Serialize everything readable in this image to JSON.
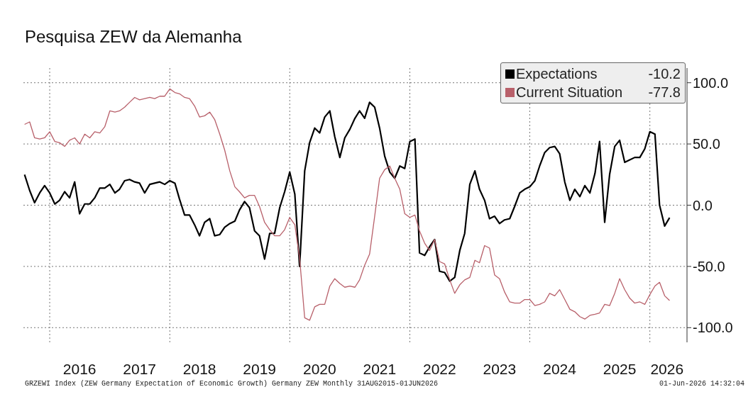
{
  "chart_data": {
    "type": "line",
    "title": "Pesquisa ZEW da Alemanha",
    "annotations": [
      "-10.2",
      "-77.8",
      "GRZEWI Index (ZEW Germany Expectation of Economic Growth) Germany ZEW Monthly 31AUG2015-01JUN2026",
      "01-Jun-2026 14:32:04"
    ],
    "x": [
      "2015-08",
      "2015-09",
      "2015-10",
      "2015-11",
      "2015-12",
      "2016-01",
      "2016-02",
      "2016-03",
      "2016-04",
      "2016-05",
      "2016-06",
      "2016-07",
      "2016-08",
      "2016-09",
      "2016-10",
      "2016-11",
      "2016-12",
      "2017-01",
      "2017-02",
      "2017-03",
      "2017-04",
      "2017-05",
      "2017-06",
      "2017-07",
      "2017-08",
      "2017-09",
      "2017-10",
      "2017-11",
      "2017-12",
      "2018-01",
      "2018-02",
      "2018-03",
      "2018-04",
      "2018-05",
      "2018-06",
      "2018-07",
      "2018-08",
      "2018-09",
      "2018-10",
      "2018-11",
      "2018-12",
      "2019-01",
      "2019-02",
      "2019-03",
      "2019-04",
      "2019-05",
      "2019-06",
      "2019-07",
      "2019-08",
      "2019-09",
      "2019-10",
      "2019-11",
      "2019-12",
      "2020-01",
      "2020-02",
      "2020-03",
      "2020-04",
      "2020-05",
      "2020-06",
      "2020-07",
      "2020-08",
      "2020-09",
      "2020-10",
      "2020-11",
      "2020-12",
      "2021-01",
      "2021-02",
      "2021-03",
      "2021-04",
      "2021-05",
      "2021-06",
      "2021-07",
      "2021-08",
      "2021-09",
      "2021-10",
      "2021-11",
      "2021-12",
      "2022-01",
      "2022-02",
      "2022-03",
      "2022-04",
      "2022-05",
      "2022-06",
      "2022-07",
      "2022-08",
      "2022-09",
      "2022-10",
      "2022-11",
      "2022-12",
      "2023-01",
      "2023-02",
      "2023-03",
      "2023-04",
      "2023-05",
      "2023-06",
      "2023-07",
      "2023-08",
      "2023-09",
      "2023-10",
      "2023-11",
      "2023-12",
      "2024-01",
      "2024-02",
      "2024-03",
      "2024-04",
      "2024-05",
      "2024-06",
      "2024-07",
      "2024-08",
      "2024-09",
      "2024-10",
      "2024-11",
      "2024-12",
      "2025-01",
      "2025-02",
      "2025-03",
      "2025-04",
      "2025-05",
      "2025-06",
      "2025-07",
      "2025-08",
      "2025-09",
      "2025-10",
      "2025-11",
      "2025-12",
      "2026-01",
      "2026-02",
      "2026-03",
      "2026-04",
      "2026-05"
    ],
    "series": [
      {
        "name": "Expectations",
        "color": "#000000",
        "values": [
          25,
          12,
          2,
          10,
          16,
          10,
          1,
          4,
          11,
          6,
          19,
          -7,
          1,
          1,
          6,
          14,
          14,
          17,
          10,
          13,
          20,
          21,
          19,
          18,
          10,
          17,
          18,
          19,
          17,
          20,
          18,
          5,
          -8,
          -8,
          -16,
          -25,
          -14,
          -11,
          -25,
          -24,
          -18,
          -15,
          -13,
          -4,
          3,
          -2,
          -21,
          -25,
          -44,
          -23,
          -23,
          -2,
          11,
          27,
          9,
          -50,
          28,
          51,
          63,
          59,
          72,
          77,
          56,
          39,
          55,
          62,
          71,
          77,
          71,
          84,
          80,
          63,
          40,
          27,
          22,
          32,
          30,
          52,
          54,
          -39,
          -41,
          -34,
          -28,
          -54,
          -55,
          -62,
          -59,
          -37,
          -23,
          17,
          28,
          13,
          4,
          -11,
          -9,
          -15,
          -12,
          -11,
          -1,
          10,
          13,
          15,
          20,
          32,
          43,
          47,
          48,
          42,
          19,
          4,
          13,
          7,
          16,
          10,
          26,
          52,
          -14,
          25,
          48,
          53,
          35,
          37,
          39,
          39,
          46,
          60,
          58,
          0,
          -17,
          -10.2
        ]
      },
      {
        "name": "Current Situation",
        "color": "#b8606a",
        "values": [
          66,
          68,
          55,
          54,
          55,
          60,
          52,
          51,
          48,
          53,
          55,
          50,
          58,
          55,
          60,
          59,
          64,
          77,
          76,
          77,
          80,
          84,
          88,
          86,
          87,
          88,
          87,
          89,
          89,
          95,
          92,
          91,
          88,
          87,
          81,
          72,
          73,
          76,
          70,
          58,
          45,
          28,
          15,
          11,
          6,
          8,
          8,
          -1,
          -14,
          -20,
          -25,
          -25,
          -20,
          -10,
          -16,
          -43,
          -92,
          -94,
          -83,
          -81,
          -81,
          -66,
          -60,
          -64,
          -67,
          -66,
          -67,
          -61,
          -49,
          -40,
          -9,
          22,
          29,
          32,
          22,
          13,
          -7,
          -10,
          -8,
          -21,
          -31,
          -37,
          -28,
          -46,
          -48,
          -61,
          -72,
          -65,
          -61,
          -59,
          -45,
          -47,
          -33,
          -35,
          -57,
          -60,
          -71,
          -79,
          -80,
          -80,
          -77,
          -77,
          -82,
          -81,
          -79,
          -72,
          -74,
          -69,
          -77,
          -85,
          -87,
          -91,
          -93,
          -90,
          -89,
          -88,
          -81,
          -82,
          -72,
          -60,
          -69,
          -76,
          -80,
          -79,
          -81,
          -73,
          -66,
          -63,
          -74,
          -77.8
        ]
      }
    ],
    "xlim": [
      "2015-07-25",
      "2026-08-15"
    ],
    "xticks": [
      {
        "value": "2016-01-01",
        "label": null
      },
      {
        "value": "2016-07-01",
        "label": "2016"
      },
      {
        "value": "2017-07-01",
        "label": "2017"
      },
      {
        "value": "2018-01-01",
        "label": null
      },
      {
        "value": "2018-07-01",
        "label": "2018"
      },
      {
        "value": "2019-07-01",
        "label": "2019"
      },
      {
        "value": "2020-01-01",
        "label": null
      },
      {
        "value": "2020-07-01",
        "label": "2020"
      },
      {
        "value": "2021-07-01",
        "label": "2021"
      },
      {
        "value": "2022-01-01",
        "label": null
      },
      {
        "value": "2022-07-01",
        "label": "2022"
      },
      {
        "value": "2023-07-01",
        "label": "2023"
      },
      {
        "value": "2024-01-01",
        "label": null
      },
      {
        "value": "2024-07-01",
        "label": "2024"
      },
      {
        "value": "2025-07-01",
        "label": "2025"
      },
      {
        "value": "2026-01-01",
        "label": null
      },
      {
        "value": "2026-04-15",
        "label": "2026"
      }
    ],
    "ylim": [
      -112,
      112
    ],
    "yticks": [
      {
        "value": -100,
        "label": "-100.0"
      },
      {
        "value": -50,
        "label": "-50.0"
      },
      {
        "value": 0,
        "label": "0.0"
      },
      {
        "value": 50,
        "label": "50.0"
      },
      {
        "value": 100,
        "label": "100.0"
      }
    ],
    "grid": true,
    "legend": "top right",
    "marker": "none",
    "line_style": "solid"
  }
}
